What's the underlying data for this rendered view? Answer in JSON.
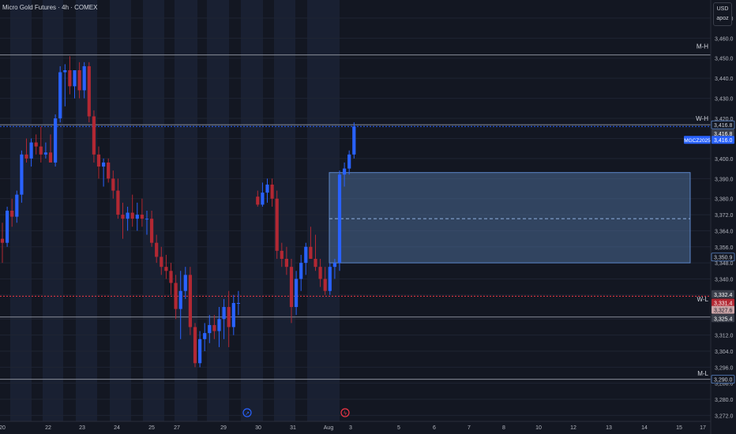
{
  "header": {
    "symbol_title": "Micro Gold Futures · 4h · COMEX",
    "currency": "USD",
    "user": "apoz"
  },
  "colors": {
    "background": "#131722",
    "up": "#2962ff",
    "down": "#b22833",
    "session_shade": "#1c2438",
    "zone_fill": "#4a6a94",
    "level_line": "#8a8e99",
    "current_price_line": "#2962ff",
    "weekly_low_line": "#f23645"
  },
  "icons": {
    "event_dividends": "dividend-icon",
    "event_flash": "flash-icon"
  },
  "chart_data": {
    "type": "candlestick",
    "instrument": "MGCZ2025",
    "timeframe": "4h",
    "y_axis": {
      "range": [
        3269,
        3479
      ],
      "ticks": [
        "3,470.0",
        "3,460.0",
        "3,450.0",
        "3,440.0",
        "3,430.0",
        "3,420.0",
        "3,410.0",
        "3,400.0",
        "3,390.0",
        "3,380.0",
        "3,372.0",
        "3,364.0",
        "3,356.0",
        "3,348.0",
        "3,340.0",
        "3,332.0",
        "3,320.0",
        "3,312.0",
        "3,304.0",
        "3,296.0",
        "3,288.0",
        "3,280.0",
        "3,272.0"
      ],
      "tick_values": [
        3470,
        3460,
        3450,
        3440,
        3430,
        3420,
        3410,
        3400,
        3390,
        3380,
        3372,
        3364,
        3356,
        3348,
        3340,
        3332,
        3320,
        3312,
        3304,
        3296,
        3288,
        3280,
        3272
      ]
    },
    "x_axis": {
      "labels": [
        "20",
        "22",
        "23",
        "24",
        "25",
        "27",
        "29",
        "30",
        "31",
        "Aug",
        "3",
        "5",
        "6",
        "7",
        "8",
        "10",
        "12",
        "13",
        "14",
        "15",
        "17"
      ]
    },
    "candles": [
      {
        "o": 3360,
        "h": 3368,
        "l": 3348,
        "c": 3358
      },
      {
        "o": 3358,
        "h": 3376,
        "l": 3356,
        "c": 3374
      },
      {
        "o": 3374,
        "h": 3380,
        "l": 3366,
        "c": 3371
      },
      {
        "o": 3371,
        "h": 3384,
        "l": 3368,
        "c": 3382
      },
      {
        "o": 3382,
        "h": 3404,
        "l": 3378,
        "c": 3402
      },
      {
        "o": 3402,
        "h": 3410,
        "l": 3398,
        "c": 3400
      },
      {
        "o": 3400,
        "h": 3410,
        "l": 3396,
        "c": 3408
      },
      {
        "o": 3408,
        "h": 3412,
        "l": 3402,
        "c": 3406
      },
      {
        "o": 3406,
        "h": 3416,
        "l": 3398,
        "c": 3402
      },
      {
        "o": 3402,
        "h": 3408,
        "l": 3400,
        "c": 3403
      },
      {
        "o": 3403,
        "h": 3412,
        "l": 3399,
        "c": 3398
      },
      {
        "o": 3398,
        "h": 3422,
        "l": 3396,
        "c": 3420
      },
      {
        "o": 3420,
        "h": 3446,
        "l": 3418,
        "c": 3443
      },
      {
        "o": 3443,
        "h": 3447,
        "l": 3426,
        "c": 3444
      },
      {
        "o": 3444,
        "h": 3451,
        "l": 3432,
        "c": 3436
      },
      {
        "o": 3436,
        "h": 3444,
        "l": 3430,
        "c": 3444
      },
      {
        "o": 3444,
        "h": 3448,
        "l": 3430,
        "c": 3434
      },
      {
        "o": 3434,
        "h": 3448,
        "l": 3430,
        "c": 3446
      },
      {
        "o": 3446,
        "h": 3448,
        "l": 3418,
        "c": 3421
      },
      {
        "o": 3421,
        "h": 3424,
        "l": 3398,
        "c": 3402
      },
      {
        "o": 3402,
        "h": 3406,
        "l": 3390,
        "c": 3396
      },
      {
        "o": 3396,
        "h": 3400,
        "l": 3386,
        "c": 3398
      },
      {
        "o": 3398,
        "h": 3400,
        "l": 3388,
        "c": 3390
      },
      {
        "o": 3390,
        "h": 3394,
        "l": 3380,
        "c": 3384
      },
      {
        "o": 3384,
        "h": 3390,
        "l": 3370,
        "c": 3372
      },
      {
        "o": 3372,
        "h": 3378,
        "l": 3360,
        "c": 3370
      },
      {
        "o": 3370,
        "h": 3376,
        "l": 3364,
        "c": 3373
      },
      {
        "o": 3373,
        "h": 3382,
        "l": 3366,
        "c": 3370
      },
      {
        "o": 3370,
        "h": 3378,
        "l": 3364,
        "c": 3372
      },
      {
        "o": 3372,
        "h": 3380,
        "l": 3366,
        "c": 3370
      },
      {
        "o": 3370,
        "h": 3374,
        "l": 3362,
        "c": 3370
      },
      {
        "o": 3370,
        "h": 3374,
        "l": 3356,
        "c": 3358
      },
      {
        "o": 3358,
        "h": 3362,
        "l": 3348,
        "c": 3351
      },
      {
        "o": 3351,
        "h": 3356,
        "l": 3342,
        "c": 3346
      },
      {
        "o": 3346,
        "h": 3352,
        "l": 3340,
        "c": 3344
      },
      {
        "o": 3344,
        "h": 3348,
        "l": 3332,
        "c": 3338
      },
      {
        "o": 3338,
        "h": 3342,
        "l": 3320,
        "c": 3325
      },
      {
        "o": 3325,
        "h": 3344,
        "l": 3310,
        "c": 3334
      },
      {
        "o": 3334,
        "h": 3346,
        "l": 3330,
        "c": 3342
      },
      {
        "o": 3342,
        "h": 3346,
        "l": 3312,
        "c": 3316
      },
      {
        "o": 3316,
        "h": 3318,
        "l": 3296,
        "c": 3298
      },
      {
        "o": 3298,
        "h": 3314,
        "l": 3296,
        "c": 3310
      },
      {
        "o": 3310,
        "h": 3318,
        "l": 3304,
        "c": 3313
      },
      {
        "o": 3313,
        "h": 3322,
        "l": 3308,
        "c": 3317
      },
      {
        "o": 3317,
        "h": 3322,
        "l": 3310,
        "c": 3314
      },
      {
        "o": 3314,
        "h": 3326,
        "l": 3306,
        "c": 3320
      },
      {
        "o": 3320,
        "h": 3330,
        "l": 3310,
        "c": 3326
      },
      {
        "o": 3326,
        "h": 3334,
        "l": 3306,
        "c": 3316
      },
      {
        "o": 3316,
        "h": 3332,
        "l": 3312,
        "c": 3328
      },
      {
        "o": 3328,
        "h": 3334,
        "l": 3322,
        "c": 3328
      },
      {
        "o": 3381,
        "h": 3384,
        "l": 3376,
        "c": 3377
      },
      {
        "o": 3377,
        "h": 3388,
        "l": 3376,
        "c": 3383
      },
      {
        "o": 3383,
        "h": 3390,
        "l": 3378,
        "c": 3387
      },
      {
        "o": 3387,
        "h": 3390,
        "l": 3376,
        "c": 3380
      },
      {
        "o": 3380,
        "h": 3384,
        "l": 3350,
        "c": 3354
      },
      {
        "o": 3354,
        "h": 3358,
        "l": 3346,
        "c": 3350
      },
      {
        "o": 3350,
        "h": 3356,
        "l": 3342,
        "c": 3346
      },
      {
        "o": 3346,
        "h": 3350,
        "l": 3318,
        "c": 3326
      },
      {
        "o": 3326,
        "h": 3344,
        "l": 3322,
        "c": 3340
      },
      {
        "o": 3340,
        "h": 3352,
        "l": 3334,
        "c": 3348
      },
      {
        "o": 3348,
        "h": 3358,
        "l": 3342,
        "c": 3356
      },
      {
        "o": 3356,
        "h": 3366,
        "l": 3350,
        "c": 3350
      },
      {
        "o": 3350,
        "h": 3362,
        "l": 3344,
        "c": 3346
      },
      {
        "o": 3346,
        "h": 3350,
        "l": 3336,
        "c": 3340
      },
      {
        "o": 3340,
        "h": 3346,
        "l": 3332,
        "c": 3334
      },
      {
        "o": 3334,
        "h": 3348,
        "l": 3332,
        "c": 3346
      },
      {
        "o": 3346,
        "h": 3350,
        "l": 3340,
        "c": 3348
      },
      {
        "o": 3348,
        "h": 3394,
        "l": 3344,
        "c": 3392
      },
      {
        "o": 3392,
        "h": 3398,
        "l": 3386,
        "c": 3395
      },
      {
        "o": 3395,
        "h": 3404,
        "l": 3392,
        "c": 3402
      },
      {
        "o": 3402,
        "h": 3418,
        "l": 3400,
        "c": 3416
      }
    ],
    "zone": {
      "top": 3393,
      "bottom": 3348,
      "mid": 3370
    },
    "levels": [
      {
        "name": "M-H",
        "value": 3451.6,
        "label": "3,451.6",
        "style": "solid"
      },
      {
        "name": "W-H",
        "value": 3416.8,
        "label": "3,416.8",
        "style": "solid"
      },
      {
        "name": "MGCZ2025",
        "value": 3416.0,
        "label": "3,416.0",
        "style": "dotted"
      },
      {
        "name": "W-L",
        "value": 3331.4,
        "label": "3,331.4",
        "style": "dotted-red"
      },
      {
        "name": "M-L",
        "value": 3290.0,
        "label": "3,290.0",
        "style": "solid"
      }
    ],
    "price_tags": [
      {
        "label": "3,416.8",
        "value": 3416.8,
        "kind": "outline"
      },
      {
        "label": "3,416.8",
        "value": 3412.6,
        "kind": "gray"
      },
      {
        "label": "3,416.0",
        "value": 3409.3,
        "kind": "blue"
      },
      {
        "label": "3,350.9",
        "value": 3350.9,
        "kind": "outline"
      },
      {
        "label": "3,332.4",
        "value": 3332.4,
        "kind": "gray"
      },
      {
        "label": "3,331.4",
        "value": 3328.2,
        "kind": "red"
      },
      {
        "label": "3,327.6",
        "value": 3324.6,
        "kind": "lightred"
      },
      {
        "label": "3,325.4",
        "value": 3320.4,
        "kind": "gray"
      },
      {
        "label": "3,290.0",
        "value": 3290.0,
        "kind": "outline"
      }
    ],
    "side_labels": [
      {
        "text": "M-H",
        "value": 3456
      },
      {
        "text": "W-H",
        "value": 3420
      },
      {
        "text": "MGCZ2025",
        "value": 3409.3
      },
      {
        "text": "W-L",
        "value": 3330
      },
      {
        "text": "M-L",
        "value": 3293
      }
    ]
  }
}
